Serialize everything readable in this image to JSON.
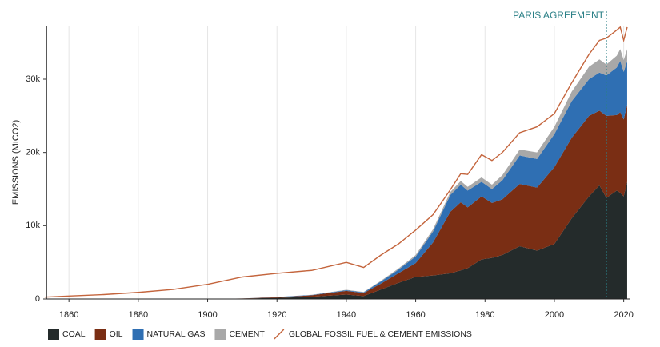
{
  "chart_data": {
    "type": "area",
    "stacked": true,
    "ylabel": "EMISSIONS (MtCO2)",
    "x": [
      1853,
      1860,
      1870,
      1880,
      1890,
      1900,
      1910,
      1920,
      1930,
      1940,
      1945,
      1950,
      1955,
      1960,
      1965,
      1970,
      1973,
      1975,
      1979,
      1982,
      1985,
      1990,
      1995,
      2000,
      2005,
      2010,
      2013,
      2015,
      2018,
      2019,
      2020,
      2021
    ],
    "series": [
      {
        "name": "COAL",
        "color": "#242b2b",
        "type": "area",
        "values": [
          0,
          0,
          0,
          0,
          0,
          0,
          50,
          150,
          300,
          600,
          400,
          1300,
          2200,
          3000,
          3200,
          3500,
          3900,
          4200,
          5400,
          5600,
          6000,
          7200,
          6600,
          7500,
          11000,
          14000,
          15500,
          13800,
          14800,
          14500,
          14000,
          16000
        ]
      },
      {
        "name": "OIL",
        "color": "#7a2e14",
        "type": "area",
        "values": [
          0,
          0,
          0,
          0,
          0,
          0,
          20,
          100,
          200,
          500,
          400,
          800,
          1300,
          1900,
          4500,
          8400,
          9300,
          8300,
          8600,
          7500,
          7600,
          8500,
          8600,
          10500,
          11000,
          11000,
          10200,
          11200,
          10300,
          11000,
          10500,
          10500
        ]
      },
      {
        "name": "NATURAL GAS",
        "color": "#2f6fb3",
        "type": "area",
        "values": [
          0,
          0,
          0,
          0,
          0,
          0,
          0,
          20,
          50,
          100,
          100,
          300,
          500,
          900,
          1500,
          2300,
          2400,
          2300,
          2000,
          1900,
          2600,
          3900,
          3900,
          4500,
          5000,
          5000,
          5200,
          5500,
          6500,
          7000,
          6500,
          6000
        ]
      },
      {
        "name": "CEMENT",
        "color": "#a8a8a8",
        "type": "area",
        "values": [
          0,
          0,
          0,
          0,
          0,
          0,
          0,
          0,
          20,
          50,
          50,
          100,
          150,
          200,
          300,
          400,
          500,
          500,
          600,
          600,
          700,
          800,
          900,
          1000,
          1300,
          1700,
          1800,
          1500,
          1600,
          1600,
          1600,
          1600
        ]
      },
      {
        "name": "GLOBAL FOSSIL FUEL & CEMENT EMISSIONS",
        "color": "#c4653d",
        "type": "line",
        "values": [
          250,
          400,
          600,
          900,
          1300,
          2000,
          3000,
          3500,
          3900,
          5000,
          4300,
          6000,
          7500,
          9400,
          11500,
          14900,
          17100,
          17000,
          19700,
          18900,
          20000,
          22700,
          23500,
          25300,
          29500,
          33400,
          35300,
          35600,
          36700,
          37100,
          35300,
          37100
        ]
      }
    ],
    "xlim": [
      1853.5,
      2021.7
    ],
    "xticks": [
      1860,
      1880,
      1900,
      1920,
      1940,
      1960,
      1980,
      2000,
      2020
    ],
    "ylim": [
      0,
      37200
    ],
    "yticks": [
      0,
      {
        "value": 10000,
        "label": "10k"
      },
      {
        "value": 20000,
        "label": "20k"
      },
      {
        "value": 30000,
        "label": "30k"
      }
    ],
    "grid": true,
    "annotations": [
      {
        "text": "PARIS AGREEMENT",
        "x": 2015,
        "color": "#2a7f86"
      }
    ]
  }
}
